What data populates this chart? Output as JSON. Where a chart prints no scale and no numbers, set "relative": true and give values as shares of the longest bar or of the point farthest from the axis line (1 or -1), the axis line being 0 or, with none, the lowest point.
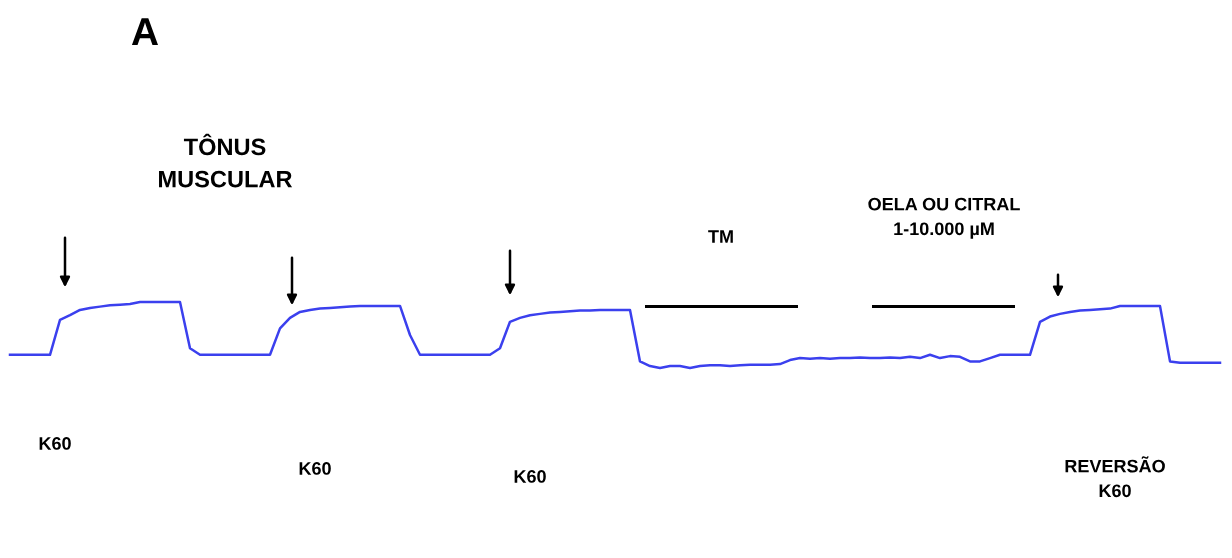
{
  "chart_data": {
    "type": "line",
    "title": "A",
    "relative": true,
    "marker": "none",
    "line_style": "solid",
    "categories": [
      null,
      null,
      null,
      null,
      null,
      null,
      null,
      null,
      null,
      null,
      null,
      null,
      null,
      null,
      null,
      null,
      null,
      null,
      null,
      null,
      null,
      null,
      null,
      null,
      null,
      null,
      null,
      null,
      null,
      null,
      null,
      null,
      null,
      null,
      null,
      null,
      null,
      null,
      null,
      null,
      null,
      null,
      null,
      null,
      null,
      null,
      null,
      null,
      null,
      null,
      null,
      null,
      null,
      null,
      null,
      null,
      null,
      null,
      null,
      null,
      null,
      null,
      null,
      null,
      null,
      null,
      null,
      null,
      null,
      null,
      null,
      null,
      null,
      null,
      null,
      null,
      null,
      null,
      null,
      null,
      null,
      null,
      null,
      null,
      null,
      null,
      null,
      null,
      null,
      null,
      null,
      null,
      null,
      null,
      null,
      null,
      null,
      null,
      null,
      null,
      null,
      null,
      null,
      null,
      null,
      null,
      null,
      null,
      null,
      null,
      null,
      null,
      null,
      null,
      null,
      null,
      null,
      null,
      null,
      null,
      null,
      null
    ],
    "series": [
      {
        "color": "#3b40ee",
        "values": [
          0.2,
          0.2,
          0.2,
          0.2,
          0.2,
          0.73,
          0.8,
          0.88,
          0.91,
          0.93,
          0.95,
          0.96,
          0.97,
          1.0,
          1.0,
          1.0,
          1.0,
          1.0,
          0.3,
          0.2,
          0.2,
          0.2,
          0.2,
          0.2,
          0.2,
          0.2,
          0.2,
          0.6,
          0.76,
          0.85,
          0.88,
          0.9,
          0.91,
          0.92,
          0.93,
          0.94,
          0.94,
          0.94,
          0.94,
          0.94,
          0.5,
          0.2,
          0.2,
          0.2,
          0.2,
          0.2,
          0.2,
          0.2,
          0.2,
          0.3,
          0.7,
          0.76,
          0.8,
          0.82,
          0.84,
          0.85,
          0.86,
          0.87,
          0.87,
          0.88,
          0.88,
          0.88,
          0.88,
          0.1,
          0.03,
          0.0,
          0.03,
          0.03,
          0.0,
          0.03,
          0.04,
          0.04,
          0.03,
          0.04,
          0.05,
          0.05,
          0.05,
          0.06,
          0.12,
          0.15,
          0.14,
          0.15,
          0.14,
          0.15,
          0.15,
          0.16,
          0.15,
          0.15,
          0.16,
          0.15,
          0.17,
          0.15,
          0.2,
          0.15,
          0.18,
          0.17,
          0.1,
          0.1,
          0.15,
          0.2,
          0.2,
          0.2,
          0.2,
          0.7,
          0.78,
          0.82,
          0.85,
          0.87,
          0.88,
          0.89,
          0.9,
          0.94,
          0.94,
          0.94,
          0.94,
          0.94,
          0.1,
          0.08,
          0.08,
          0.08,
          0.08,
          0.08
        ]
      }
    ],
    "annotations": [
      "TÔNUS\nMUSCULAR",
      "K60",
      "K60",
      "K60",
      "TM",
      "OELA OU CITRAL\n1-10.000 µM",
      "REVERSÃO\nK60"
    ]
  }
}
